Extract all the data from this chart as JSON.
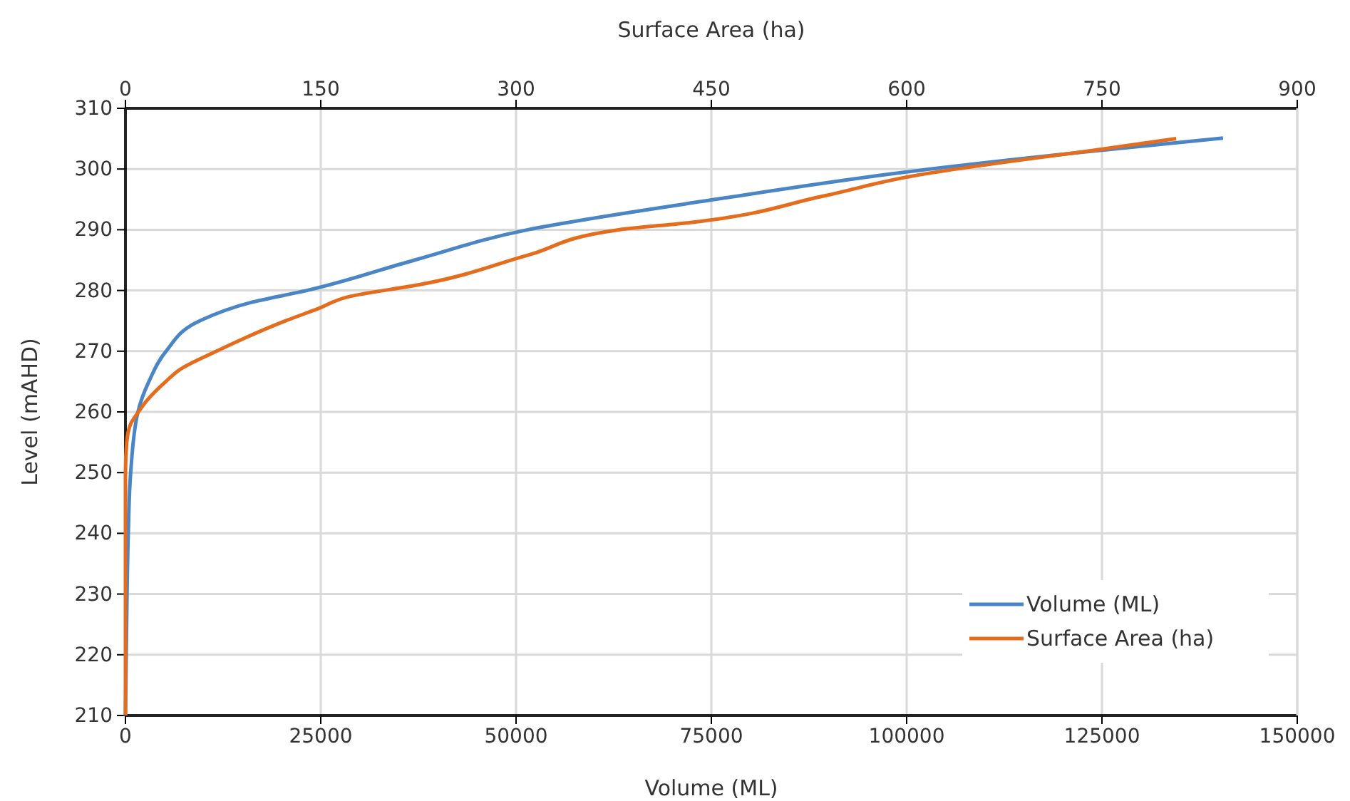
{
  "chart_data": {
    "type": "line",
    "xlabel": "Volume (ML)",
    "x2label": "Surface Area (ha)",
    "ylabel": "Level (mAHD)",
    "xlim": [
      0,
      150000
    ],
    "xticks": [
      0,
      25000,
      50000,
      75000,
      100000,
      125000,
      150000
    ],
    "x2lim": [
      0,
      900
    ],
    "x2ticks": [
      0,
      150,
      300,
      450,
      600,
      750,
      900
    ],
    "ylim": [
      210,
      310
    ],
    "yticks": [
      210,
      220,
      230,
      240,
      250,
      260,
      270,
      280,
      290,
      300,
      310
    ],
    "grid": true,
    "legend": "bottom right",
    "marker": "none",
    "line_style": "solid",
    "series": [
      {
        "name": "Volume (ML)",
        "color": "#4a86c5",
        "x": [
          0,
          200,
          360,
          670,
          1600,
          3000,
          5200,
          9500,
          16000,
          23200,
          37000,
          51500,
          75500,
          100500,
          125700,
          140500
        ],
        "values": [
          210,
          230,
          240,
          250,
          260,
          265,
          270,
          275,
          278,
          280,
          285,
          290,
          295,
          299.6,
          303.2,
          305.1
        ]
      },
      {
        "name": "Surface Area (ha)",
        "color": "#e46c1c",
        "axis": "x2",
        "x": [
          0,
          0,
          1,
          4,
          10,
          17,
          31,
          42,
          70,
          90,
          123,
          148,
          172,
          227,
          309,
          379,
          434,
          535,
          603,
          754,
          807
        ],
        "values": [
          210,
          250,
          255,
          258,
          260,
          262,
          265,
          267,
          270,
          272,
          275,
          277,
          279,
          281,
          285.8,
          290,
          291.2,
          295.5,
          298.8,
          303.4,
          305
        ]
      }
    ]
  }
}
